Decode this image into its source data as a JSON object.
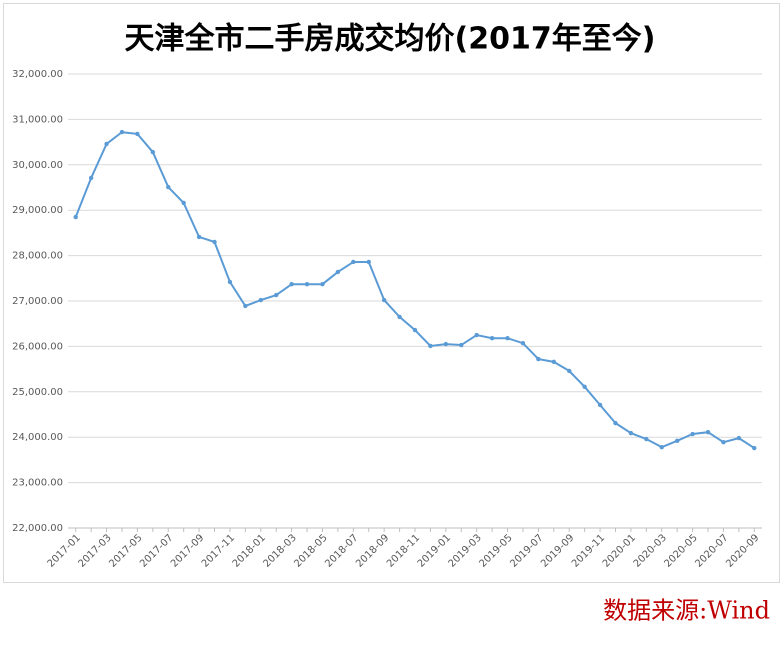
{
  "chart_data": {
    "type": "line",
    "title": "天津全市二手房成交均价(2017年至今)",
    "source": "数据来源:Wind",
    "categories": [
      "2017-01",
      null,
      "2017-03",
      null,
      "2017-05",
      null,
      "2017-07",
      null,
      "2017-09",
      null,
      "2017-11",
      null,
      "2018-01",
      null,
      "2018-03",
      null,
      "2018-05",
      null,
      "2018-07",
      null,
      "2018-09",
      null,
      "2018-11",
      null,
      "2019-01",
      null,
      "2019-03",
      null,
      "2019-05",
      null,
      "2019-07",
      null,
      "2019-09",
      null,
      "2019-11",
      null,
      "2020-01",
      null,
      "2020-03",
      null,
      "2020-05",
      null,
      "2020-07",
      null,
      "2020-09"
    ],
    "series": [
      {
        "color": "#5b9bd5",
        "values": [
          28850,
          29710,
          30460,
          30720,
          30680,
          30280,
          29510,
          29160,
          28410,
          28300,
          27420,
          26890,
          27020,
          27130,
          27370,
          27370,
          27370,
          27640,
          27860,
          27860,
          27020,
          26650,
          26360,
          26010,
          26050,
          26030,
          26250,
          26180,
          26180,
          26070,
          25720,
          25660,
          25460,
          25110,
          24710,
          24310,
          24090,
          23960,
          23780,
          23920,
          24070,
          24110,
          23890,
          23980,
          23760
        ]
      }
    ],
    "ylim": [
      22000,
      32000
    ],
    "yticks": [
      {
        "value": 22000,
        "label": "22,000.00"
      },
      {
        "value": 23000,
        "label": "23,000.00"
      },
      {
        "value": 24000,
        "label": "24,000.00"
      },
      {
        "value": 25000,
        "label": "25,000.00"
      },
      {
        "value": 26000,
        "label": "26,000.00"
      },
      {
        "value": 27000,
        "label": "27,000.00"
      },
      {
        "value": 28000,
        "label": "28,000.00"
      },
      {
        "value": 29000,
        "label": "29,000.00"
      },
      {
        "value": 30000,
        "label": "30,000.00"
      },
      {
        "value": 31000,
        "label": "31,000.00"
      },
      {
        "value": 32000,
        "label": "32,000.00"
      }
    ],
    "grid": true
  }
}
